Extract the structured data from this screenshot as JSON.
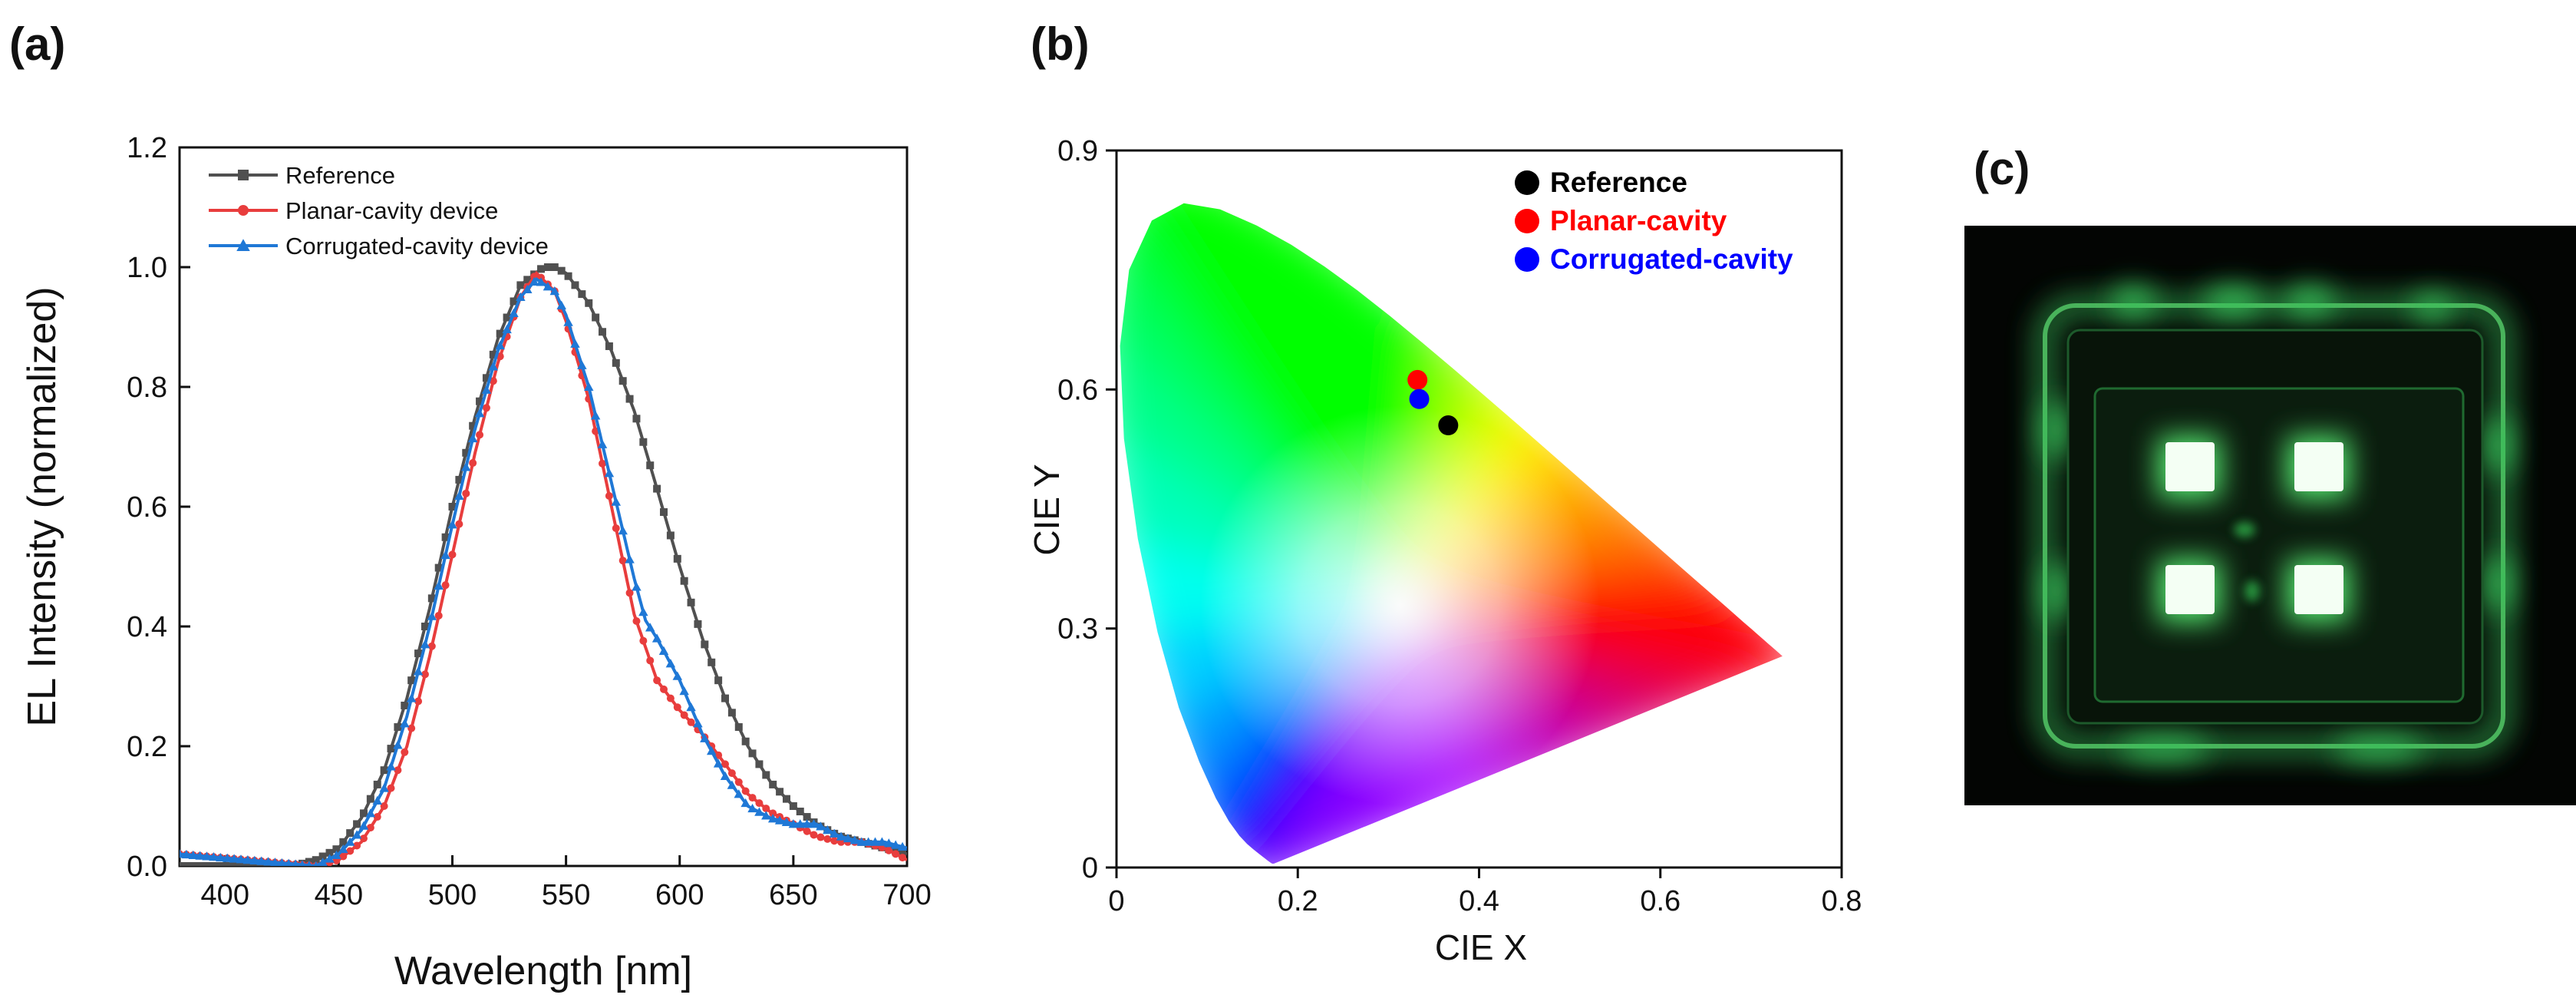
{
  "panels": {
    "a": "(a)",
    "b": "(b)",
    "c": "(c)"
  },
  "chart_data": [
    {
      "id": "a",
      "type": "line",
      "title": "",
      "xlabel": "Wavelength [nm]",
      "ylabel": "EL Intensity (normalized)",
      "xlim": [
        380,
        700
      ],
      "ylim": [
        0,
        1.2
      ],
      "xticks": [
        400,
        450,
        500,
        550,
        600,
        650,
        700
      ],
      "yticks": [
        0.0,
        0.2,
        0.4,
        0.6,
        0.8,
        1.0,
        1.2
      ],
      "ytick_labels": [
        "0.0",
        "0.2",
        "0.4",
        "0.6",
        "0.8",
        "1.0",
        "1.2"
      ],
      "legend_position": "top-left",
      "series": [
        {
          "name": "Reference",
          "color": "#505050",
          "marker": "square",
          "x": [
            380,
            430,
            440,
            450,
            460,
            470,
            480,
            490,
            500,
            510,
            520,
            530,
            540,
            545,
            550,
            560,
            570,
            580,
            590,
            600,
            610,
            620,
            630,
            640,
            650,
            660,
            670,
            680,
            690,
            700
          ],
          "y": [
            0.0,
            0.0,
            0.01,
            0.03,
            0.08,
            0.16,
            0.28,
            0.43,
            0.6,
            0.75,
            0.88,
            0.97,
            1.0,
            1.0,
            0.99,
            0.94,
            0.86,
            0.76,
            0.63,
            0.5,
            0.38,
            0.28,
            0.2,
            0.14,
            0.1,
            0.07,
            0.05,
            0.04,
            0.03,
            0.02
          ]
        },
        {
          "name": "Planar-cavity device",
          "color": "#e83d3d",
          "marker": "circle",
          "x": [
            380,
            440,
            450,
            460,
            470,
            480,
            490,
            500,
            510,
            520,
            530,
            537,
            545,
            550,
            560,
            570,
            580,
            590,
            600,
            610,
            620,
            630,
            640,
            650,
            660,
            670,
            680,
            690,
            700
          ],
          "y": [
            0.02,
            0.0,
            0.01,
            0.04,
            0.1,
            0.2,
            0.35,
            0.52,
            0.69,
            0.84,
            0.95,
            0.99,
            0.96,
            0.91,
            0.78,
            0.6,
            0.42,
            0.31,
            0.26,
            0.22,
            0.17,
            0.12,
            0.09,
            0.07,
            0.05,
            0.04,
            0.04,
            0.03,
            0.01
          ]
        },
        {
          "name": "Corrugated-cavity device",
          "color": "#1f78d6",
          "marker": "triangle",
          "x": [
            380,
            440,
            450,
            460,
            470,
            480,
            490,
            500,
            510,
            520,
            530,
            537,
            545,
            550,
            560,
            570,
            580,
            585,
            590,
            600,
            610,
            620,
            630,
            640,
            650,
            660,
            670,
            680,
            690,
            700
          ],
          "y": [
            0.02,
            0.0,
            0.02,
            0.06,
            0.13,
            0.25,
            0.4,
            0.57,
            0.73,
            0.86,
            0.95,
            0.98,
            0.96,
            0.92,
            0.8,
            0.64,
            0.48,
            0.41,
            0.38,
            0.31,
            0.22,
            0.15,
            0.1,
            0.08,
            0.07,
            0.07,
            0.05,
            0.04,
            0.04,
            0.03
          ]
        }
      ]
    },
    {
      "id": "b",
      "type": "scatter",
      "title": "",
      "xlabel": "CIE X",
      "ylabel": "CIE Y",
      "xlim": [
        0,
        0.8
      ],
      "ylim": [
        0,
        0.9
      ],
      "xticks": [
        0,
        0.2,
        0.4,
        0.6,
        0.8
      ],
      "yticks": [
        0,
        0.3,
        0.6,
        0.9
      ],
      "legend_position": "top-right",
      "gamut_locus": [
        [
          0.1741,
          0.005
        ],
        [
          0.1738,
          0.0049
        ],
        [
          0.1736,
          0.0049
        ],
        [
          0.1733,
          0.0048
        ],
        [
          0.173,
          0.0048
        ],
        [
          0.1726,
          0.0048
        ],
        [
          0.1721,
          0.0048
        ],
        [
          0.1714,
          0.0051
        ],
        [
          0.1703,
          0.0058
        ],
        [
          0.1689,
          0.0069
        ],
        [
          0.1669,
          0.0086
        ],
        [
          0.1644,
          0.0109
        ],
        [
          0.1611,
          0.0138
        ],
        [
          0.1566,
          0.0177
        ],
        [
          0.151,
          0.0227
        ],
        [
          0.144,
          0.0297
        ],
        [
          0.1355,
          0.0399
        ],
        [
          0.1241,
          0.0578
        ],
        [
          0.1096,
          0.0868
        ],
        [
          0.0913,
          0.1327
        ],
        [
          0.0687,
          0.2007
        ],
        [
          0.0454,
          0.295
        ],
        [
          0.0235,
          0.4127
        ],
        [
          0.0082,
          0.5384
        ],
        [
          0.0039,
          0.6548
        ],
        [
          0.0139,
          0.7502
        ],
        [
          0.0389,
          0.812
        ],
        [
          0.0743,
          0.8338
        ],
        [
          0.1142,
          0.8262
        ],
        [
          0.1547,
          0.8059
        ],
        [
          0.1929,
          0.7816
        ],
        [
          0.2296,
          0.7543
        ],
        [
          0.2658,
          0.7243
        ],
        [
          0.3016,
          0.6923
        ],
        [
          0.3373,
          0.6589
        ],
        [
          0.3731,
          0.6245
        ],
        [
          0.4087,
          0.5896
        ],
        [
          0.4441,
          0.5547
        ],
        [
          0.4788,
          0.5202
        ],
        [
          0.5125,
          0.4866
        ],
        [
          0.5448,
          0.4544
        ],
        [
          0.5752,
          0.4242
        ],
        [
          0.6029,
          0.3965
        ],
        [
          0.627,
          0.3725
        ],
        [
          0.6482,
          0.3514
        ],
        [
          0.6658,
          0.334
        ],
        [
          0.6801,
          0.3197
        ],
        [
          0.6915,
          0.3083
        ],
        [
          0.7006,
          0.2993
        ],
        [
          0.7079,
          0.292
        ],
        [
          0.714,
          0.2859
        ],
        [
          0.719,
          0.2809
        ],
        [
          0.723,
          0.277
        ],
        [
          0.726,
          0.274
        ],
        [
          0.7283,
          0.2717
        ],
        [
          0.73,
          0.27
        ],
        [
          0.7311,
          0.2689
        ],
        [
          0.732,
          0.268
        ],
        [
          0.7327,
          0.2673
        ],
        [
          0.7334,
          0.2666
        ],
        [
          0.734,
          0.266
        ],
        [
          0.7344,
          0.2656
        ],
        [
          0.7346,
          0.2654
        ],
        [
          0.7347,
          0.2653
        ]
      ],
      "series": [
        {
          "name": "Reference",
          "color": "#000000",
          "x": [
            0.366
          ],
          "y": [
            0.555
          ]
        },
        {
          "name": "Planar-cavity",
          "color": "#ff0000",
          "x": [
            0.332
          ],
          "y": [
            0.612
          ]
        },
        {
          "name": "Corrugated-cavity",
          "color": "#0000ff",
          "x": [
            0.334
          ],
          "y": [
            0.588
          ]
        }
      ]
    }
  ]
}
